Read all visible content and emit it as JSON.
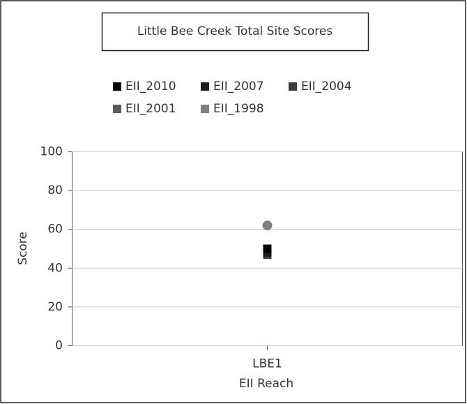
{
  "chart_data": {
    "type": "scatter",
    "title": "Little Bee Creek Total Site Scores",
    "x_label": "EII Reach",
    "y_label": "Score",
    "categories": [
      "LBE1"
    ],
    "series": [
      {
        "name": "EII_2010",
        "color": "#000000",
        "marker": "square",
        "values": [
          50
        ]
      },
      {
        "name": "EII_2007",
        "color": "#1e1e1e",
        "marker": "square",
        "values": [
          48
        ]
      },
      {
        "name": "EII_2004",
        "color": "#3c3c3c",
        "marker": "square",
        "values": [
          47
        ]
      },
      {
        "name": "EII_2001",
        "color": "#5a5a5a",
        "marker": "square",
        "values": [
          47
        ]
      },
      {
        "name": "EII_1998",
        "color": "#808080",
        "marker": "circle",
        "values": [
          62
        ]
      }
    ],
    "ylim": [
      0,
      100
    ],
    "yticks": [
      0,
      20,
      40,
      60,
      80,
      100
    ],
    "grid": true
  }
}
